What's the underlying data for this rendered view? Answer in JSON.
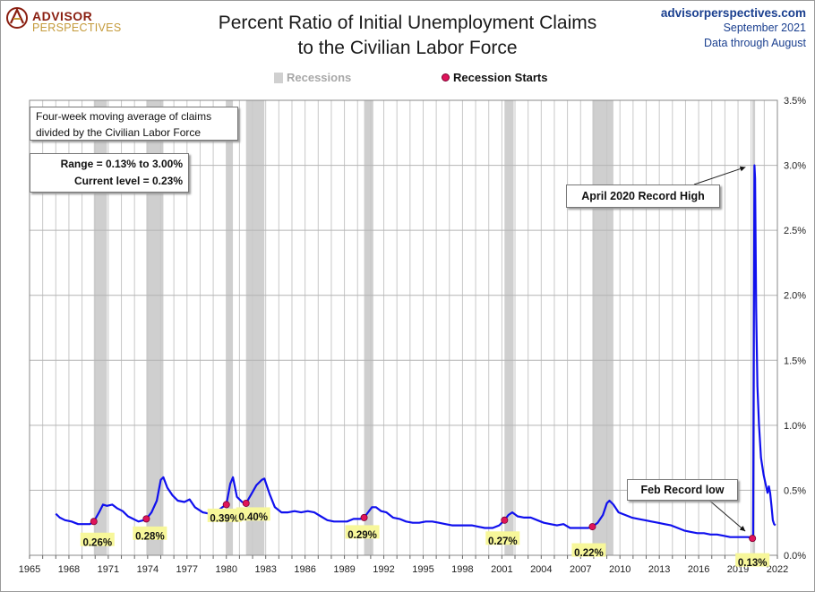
{
  "header": {
    "logo_line1": "ADVISOR",
    "logo_line2": "PERSPECTIVES",
    "title_line1": "Percent Ratio of Initial Unemployment Claims",
    "title_line2": "to the Civilian Labor Force",
    "site": "advisorperspectives.com",
    "date": "September 2021",
    "data_through": "Data through August"
  },
  "legend": {
    "recessions_label": "Recessions",
    "recession_starts_label": "Recession Starts"
  },
  "notes": {
    "description_line1": "Four-week moving average of claims",
    "description_line2": "divided by the Civilian Labor Force",
    "range": "Range = 0.13% to 3.00%",
    "current": "Current level = 0.23%"
  },
  "annotations": {
    "record_high": "April 2020  Record High",
    "record_low": "Feb Record low"
  },
  "colors": {
    "line": "#1010ee",
    "recession_band": "#cfcfcf",
    "recession_dot": "#e0145a",
    "label_bg": "#f7f79a",
    "grid": "#c8c8c8"
  },
  "chart_data": {
    "type": "line",
    "xlim": [
      1965,
      2022
    ],
    "ylim": [
      0,
      3.5
    ],
    "x_ticks": [
      "1965",
      "1968",
      "1971",
      "1974",
      "1977",
      "1980",
      "1983",
      "1986",
      "1989",
      "1992",
      "1995",
      "1998",
      "2001",
      "2004",
      "2007",
      "2010",
      "2013",
      "2016",
      "2019",
      "2022"
    ],
    "y_ticks": [
      "0.0%",
      "0.5%",
      "1.0%",
      "1.5%",
      "2.0%",
      "2.5%",
      "3.0%",
      "3.5%"
    ],
    "y_tick_values": [
      0,
      0.5,
      1.0,
      1.5,
      2.0,
      2.5,
      3.0,
      3.5
    ],
    "recessions": [
      [
        1969.9,
        1970.9
      ],
      [
        1973.9,
        1975.2
      ],
      [
        1980.0,
        1980.5
      ],
      [
        1981.5,
        1982.9
      ],
      [
        1990.5,
        1991.2
      ],
      [
        2001.2,
        2001.9
      ],
      [
        2007.9,
        2009.5
      ],
      [
        2020.1,
        2020.3
      ]
    ],
    "recession_starts": [
      {
        "x": 1969.9,
        "y": 0.26,
        "label": "0.26%"
      },
      {
        "x": 1973.9,
        "y": 0.28,
        "label": "0.28%"
      },
      {
        "x": 1980.0,
        "y": 0.39,
        "label": "0.39%"
      },
      {
        "x": 1981.5,
        "y": 0.4,
        "label": "0.40%"
      },
      {
        "x": 1990.5,
        "y": 0.29,
        "label": "0.29%"
      },
      {
        "x": 2001.2,
        "y": 0.27,
        "label": "0.27%"
      },
      {
        "x": 2007.9,
        "y": 0.22,
        "label": "0.22%"
      },
      {
        "x": 2020.1,
        "y": 0.13,
        "label": "0.13%"
      }
    ],
    "series": [
      {
        "points": [
          [
            1967.0,
            0.32
          ],
          [
            1967.3,
            0.29
          ],
          [
            1967.7,
            0.27
          ],
          [
            1968.2,
            0.26
          ],
          [
            1968.7,
            0.24
          ],
          [
            1969.2,
            0.24
          ],
          [
            1969.6,
            0.24
          ],
          [
            1969.9,
            0.26
          ],
          [
            1970.3,
            0.33
          ],
          [
            1970.6,
            0.39
          ],
          [
            1970.9,
            0.38
          ],
          [
            1971.3,
            0.39
          ],
          [
            1971.7,
            0.36
          ],
          [
            1972.1,
            0.34
          ],
          [
            1972.5,
            0.3
          ],
          [
            1972.9,
            0.28
          ],
          [
            1973.3,
            0.26
          ],
          [
            1973.7,
            0.27
          ],
          [
            1973.9,
            0.28
          ],
          [
            1974.3,
            0.33
          ],
          [
            1974.7,
            0.42
          ],
          [
            1975.0,
            0.58
          ],
          [
            1975.2,
            0.6
          ],
          [
            1975.5,
            0.52
          ],
          [
            1975.9,
            0.46
          ],
          [
            1976.3,
            0.42
          ],
          [
            1976.8,
            0.41
          ],
          [
            1977.2,
            0.43
          ],
          [
            1977.6,
            0.37
          ],
          [
            1978.2,
            0.33
          ],
          [
            1978.7,
            0.32
          ],
          [
            1979.2,
            0.33
          ],
          [
            1979.7,
            0.37
          ],
          [
            1980.0,
            0.39
          ],
          [
            1980.3,
            0.55
          ],
          [
            1980.5,
            0.6
          ],
          [
            1980.8,
            0.45
          ],
          [
            1981.2,
            0.41
          ],
          [
            1981.5,
            0.4
          ],
          [
            1981.9,
            0.47
          ],
          [
            1982.3,
            0.54
          ],
          [
            1982.7,
            0.58
          ],
          [
            1982.9,
            0.59
          ],
          [
            1983.3,
            0.47
          ],
          [
            1983.7,
            0.37
          ],
          [
            1984.2,
            0.33
          ],
          [
            1984.7,
            0.33
          ],
          [
            1985.2,
            0.34
          ],
          [
            1985.7,
            0.33
          ],
          [
            1986.2,
            0.34
          ],
          [
            1986.7,
            0.33
          ],
          [
            1987.2,
            0.3
          ],
          [
            1987.7,
            0.27
          ],
          [
            1988.2,
            0.26
          ],
          [
            1988.7,
            0.26
          ],
          [
            1989.2,
            0.26
          ],
          [
            1989.7,
            0.28
          ],
          [
            1990.2,
            0.28
          ],
          [
            1990.5,
            0.29
          ],
          [
            1990.8,
            0.33
          ],
          [
            1991.1,
            0.37
          ],
          [
            1991.4,
            0.37
          ],
          [
            1991.8,
            0.34
          ],
          [
            1992.2,
            0.33
          ],
          [
            1992.7,
            0.29
          ],
          [
            1993.2,
            0.28
          ],
          [
            1993.7,
            0.26
          ],
          [
            1994.2,
            0.25
          ],
          [
            1994.7,
            0.25
          ],
          [
            1995.2,
            0.26
          ],
          [
            1995.7,
            0.26
          ],
          [
            1996.2,
            0.25
          ],
          [
            1996.7,
            0.24
          ],
          [
            1997.2,
            0.23
          ],
          [
            1997.7,
            0.23
          ],
          [
            1998.2,
            0.23
          ],
          [
            1998.7,
            0.23
          ],
          [
            1999.2,
            0.22
          ],
          [
            1999.7,
            0.21
          ],
          [
            2000.3,
            0.21
          ],
          [
            2000.8,
            0.23
          ],
          [
            2001.2,
            0.27
          ],
          [
            2001.5,
            0.31
          ],
          [
            2001.8,
            0.33
          ],
          [
            2002.2,
            0.3
          ],
          [
            2002.7,
            0.29
          ],
          [
            2003.2,
            0.29
          ],
          [
            2003.7,
            0.27
          ],
          [
            2004.2,
            0.25
          ],
          [
            2004.7,
            0.24
          ],
          [
            2005.2,
            0.23
          ],
          [
            2005.7,
            0.24
          ],
          [
            2006.2,
            0.21
          ],
          [
            2006.7,
            0.21
          ],
          [
            2007.2,
            0.21
          ],
          [
            2007.6,
            0.21
          ],
          [
            2007.9,
            0.22
          ],
          [
            2008.3,
            0.25
          ],
          [
            2008.7,
            0.31
          ],
          [
            2009.0,
            0.4
          ],
          [
            2009.2,
            0.42
          ],
          [
            2009.5,
            0.39
          ],
          [
            2009.9,
            0.33
          ],
          [
            2010.4,
            0.31
          ],
          [
            2010.9,
            0.29
          ],
          [
            2011.4,
            0.28
          ],
          [
            2011.9,
            0.27
          ],
          [
            2012.4,
            0.26
          ],
          [
            2012.9,
            0.25
          ],
          [
            2013.4,
            0.24
          ],
          [
            2013.9,
            0.23
          ],
          [
            2014.4,
            0.21
          ],
          [
            2014.9,
            0.19
          ],
          [
            2015.4,
            0.18
          ],
          [
            2015.9,
            0.17
          ],
          [
            2016.4,
            0.17
          ],
          [
            2016.9,
            0.16
          ],
          [
            2017.4,
            0.16
          ],
          [
            2017.9,
            0.15
          ],
          [
            2018.4,
            0.14
          ],
          [
            2018.9,
            0.14
          ],
          [
            2019.4,
            0.14
          ],
          [
            2019.8,
            0.14
          ],
          [
            2020.05,
            0.13
          ],
          [
            2020.15,
            0.13
          ],
          [
            2020.2,
            1.5
          ],
          [
            2020.25,
            3.0
          ],
          [
            2020.3,
            2.9
          ],
          [
            2020.38,
            1.9
          ],
          [
            2020.48,
            1.3
          ],
          [
            2020.6,
            1.0
          ],
          [
            2020.75,
            0.75
          ],
          [
            2020.95,
            0.62
          ],
          [
            2021.1,
            0.55
          ],
          [
            2021.25,
            0.48
          ],
          [
            2021.35,
            0.53
          ],
          [
            2021.45,
            0.48
          ],
          [
            2021.55,
            0.38
          ],
          [
            2021.65,
            0.27
          ],
          [
            2021.75,
            0.24
          ],
          [
            2021.85,
            0.23
          ]
        ]
      }
    ]
  }
}
